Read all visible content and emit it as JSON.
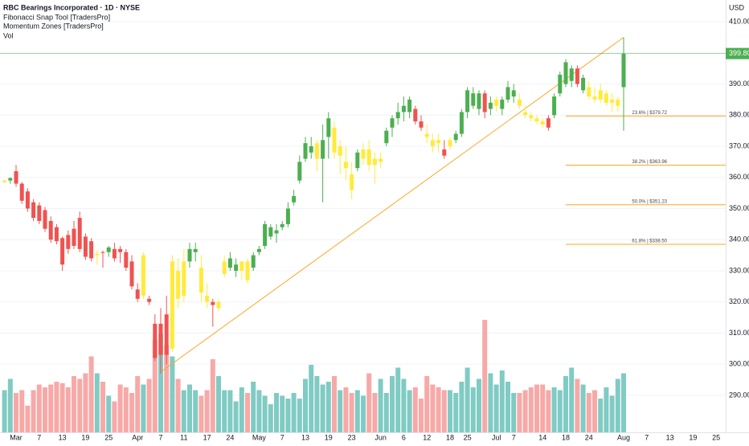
{
  "chart_data": {
    "type": "candlestick",
    "title": "RBC Bearings Incorporated · 1D · NYSE",
    "indicators": [
      "Fibonacci Snap Tool [TradersPro]",
      "Momentum Zones [TradersPro]",
      "Vol"
    ],
    "currency": "USD",
    "ylim": [
      278.1,
      417.0
    ],
    "yticks": [
      290,
      300,
      310,
      320,
      330,
      340,
      350,
      360,
      370,
      380,
      390,
      400,
      410
    ],
    "yticks_labels": [
      "290.00",
      "300.00",
      "310.00",
      "320.00",
      "330.00",
      "340.00",
      "350.00",
      "360.00",
      "370.00",
      "380.00",
      "390.00",
      "400.00",
      "410.00"
    ],
    "xlim": [
      -0.78,
      124.64
    ],
    "xticks": [
      {
        "value": 2,
        "label": "Mar"
      },
      {
        "value": 6,
        "label": "7"
      },
      {
        "value": 10,
        "label": "13"
      },
      {
        "value": 14,
        "label": "19"
      },
      {
        "value": 18,
        "label": "25"
      },
      {
        "value": 23,
        "label": "Apr"
      },
      {
        "value": 27,
        "label": "7"
      },
      {
        "value": 31,
        "label": "11"
      },
      {
        "value": 35,
        "label": "17"
      },
      {
        "value": 39,
        "label": "24"
      },
      {
        "value": 44,
        "label": "May"
      },
      {
        "value": 48,
        "label": "7"
      },
      {
        "value": 52,
        "label": "13"
      },
      {
        "value": 56,
        "label": "19"
      },
      {
        "value": 60,
        "label": "23"
      },
      {
        "value": 65,
        "label": "Jun"
      },
      {
        "value": 69,
        "label": "6"
      },
      {
        "value": 73,
        "label": "12"
      },
      {
        "value": 77,
        "label": "18"
      },
      {
        "value": 80,
        "label": "25"
      },
      {
        "value": 85,
        "label": "Jul"
      },
      {
        "value": 88,
        "label": "7"
      },
      {
        "value": 93,
        "label": "14"
      },
      {
        "value": 97,
        "label": "18"
      },
      {
        "value": 101,
        "label": "24"
      },
      {
        "value": 107,
        "label": "Aug"
      },
      {
        "value": 111,
        "label": "7"
      },
      {
        "value": 115,
        "label": "13"
      },
      {
        "value": 119,
        "label": "19"
      },
      {
        "value": 123,
        "label": "25"
      }
    ],
    "ohlc": [
      [
        358.5,
        359.2,
        358,
        359
      ],
      [
        359,
        360,
        358,
        359.8
      ],
      [
        362,
        364,
        357,
        358
      ],
      [
        358,
        358.5,
        351.5,
        352.5
      ],
      [
        355.5,
        356.5,
        349,
        350
      ],
      [
        352,
        353,
        346,
        347
      ],
      [
        351,
        352,
        345,
        346
      ],
      [
        349.5,
        350.5,
        342.5,
        343.5
      ],
      [
        346,
        347.5,
        339,
        340
      ],
      [
        344,
        345,
        338.5,
        339.5
      ],
      [
        340.5,
        341,
        330,
        332
      ],
      [
        341.5,
        343,
        335.5,
        337
      ],
      [
        343.5,
        346,
        337,
        338
      ],
      [
        347,
        349,
        336,
        337
      ],
      [
        341,
        342,
        333.5,
        334.5
      ],
      [
        339.5,
        340.5,
        333,
        334
      ],
      [
        335,
        336.5,
        332,
        335.5
      ],
      [
        336,
        336.5,
        331,
        335.8
      ],
      [
        336,
        338,
        334.5,
        337.5
      ],
      [
        337,
        339,
        333,
        334
      ],
      [
        337,
        338,
        332.5,
        336
      ],
      [
        336,
        337,
        330,
        331
      ],
      [
        333,
        335,
        324,
        325
      ],
      [
        324,
        326,
        320,
        321
      ],
      [
        322,
        336,
        321,
        335
      ],
      [
        321,
        322,
        319,
        320
      ],
      [
        313,
        316,
        301,
        302
      ],
      [
        303,
        318,
        297,
        313
      ],
      [
        316,
        322,
        300,
        303
      ],
      [
        305,
        335,
        304,
        333
      ],
      [
        330,
        334,
        318,
        321
      ],
      [
        322,
        337,
        320,
        333
      ],
      [
        333,
        339,
        331,
        337
      ],
      [
        336,
        339,
        333,
        337
      ],
      [
        331,
        335,
        320,
        323
      ],
      [
        322,
        326,
        318,
        320
      ],
      [
        320,
        321,
        312,
        319
      ],
      [
        318,
        321,
        317,
        320
      ],
      [
        329,
        335,
        328,
        333
      ],
      [
        331,
        336,
        330,
        334
      ],
      [
        330,
        334,
        328,
        332
      ],
      [
        330,
        333,
        327,
        333
      ],
      [
        333,
        334,
        326,
        327
      ],
      [
        331,
        336,
        330,
        335
      ],
      [
        336,
        338,
        335,
        337
      ],
      [
        338,
        346,
        337,
        345
      ],
      [
        341,
        345,
        340,
        344
      ],
      [
        342,
        345,
        339,
        343
      ],
      [
        344,
        346,
        343,
        345
      ],
      [
        345,
        352,
        344,
        350
      ],
      [
        352,
        356,
        351,
        354
      ],
      [
        359,
        367,
        358,
        365
      ],
      [
        366,
        373,
        365,
        371
      ],
      [
        368,
        373,
        366,
        370
      ],
      [
        366,
        372,
        362,
        371
      ],
      [
        366,
        377,
        352,
        372
      ],
      [
        373,
        381,
        366,
        379
      ],
      [
        376,
        378,
        366,
        368
      ],
      [
        367,
        372,
        361,
        370
      ],
      [
        365,
        370,
        359,
        363
      ],
      [
        361,
        365,
        353,
        356
      ],
      [
        363,
        369,
        362,
        368
      ],
      [
        366,
        371,
        364,
        369
      ],
      [
        369,
        372,
        362,
        364
      ],
      [
        366,
        368,
        358,
        364
      ],
      [
        365,
        368,
        363,
        366
      ],
      [
        371,
        376,
        370,
        375
      ],
      [
        376,
        380,
        373,
        379
      ],
      [
        379,
        384,
        377,
        381
      ],
      [
        381,
        386,
        378,
        383
      ],
      [
        381,
        386,
        379,
        385
      ],
      [
        382,
        383,
        377,
        378
      ],
      [
        378,
        380,
        375,
        376
      ],
      [
        374,
        377,
        371,
        373
      ],
      [
        372,
        374,
        368,
        370
      ],
      [
        372,
        374,
        368,
        371
      ],
      [
        369,
        372,
        366,
        367
      ],
      [
        370,
        373,
        369,
        372
      ],
      [
        372,
        375,
        371,
        374
      ],
      [
        374,
        382,
        373,
        381
      ],
      [
        381,
        389,
        379,
        388
      ],
      [
        383,
        389,
        382,
        387
      ],
      [
        382,
        388,
        380,
        387
      ],
      [
        387,
        388,
        379,
        381
      ],
      [
        382,
        386,
        380,
        384
      ],
      [
        383,
        386,
        381,
        385
      ],
      [
        382,
        386,
        380,
        385
      ],
      [
        385,
        391,
        384,
        389
      ],
      [
        386,
        390,
        384,
        388
      ],
      [
        385,
        387,
        382,
        383
      ],
      [
        381,
        383,
        379,
        380
      ],
      [
        380,
        381,
        378,
        379
      ],
      [
        379,
        380,
        377,
        378
      ],
      [
        378,
        379,
        376,
        377
      ],
      [
        379,
        380,
        375,
        376
      ],
      [
        380,
        387,
        379,
        386
      ],
      [
        387,
        394,
        386,
        393
      ],
      [
        390,
        398,
        389,
        397
      ],
      [
        391,
        396,
        389,
        395
      ],
      [
        395,
        396,
        389,
        390
      ],
      [
        388,
        393,
        387,
        392
      ],
      [
        389,
        391,
        385,
        386
      ],
      [
        386,
        389,
        384,
        385
      ],
      [
        385,
        390,
        384,
        388
      ],
      [
        384,
        388,
        383,
        387
      ],
      [
        384,
        387,
        381,
        385
      ],
      [
        383,
        386,
        381,
        385
      ],
      [
        389,
        405,
        375,
        399.8
      ]
    ],
    "colors": [
      "#ffeb3b",
      "#4caf50",
      "#ef5350",
      "#ef5350",
      "#ef5350",
      "#ef5350",
      "#ef5350",
      "#ef5350",
      "#ef5350",
      "#ef5350",
      "#ef5350",
      "#ef5350",
      "#ef5350",
      "#ef5350",
      "#ef5350",
      "#ef5350",
      "#ffeb3b",
      "#ef5350",
      "#4caf50",
      "#ef5350",
      "#ef5350",
      "#ef5350",
      "#ef5350",
      "#ef5350",
      "#ffeb3b",
      "#ef5350",
      "#ef5350",
      "#ef5350",
      "#ef5350",
      "#ffeb3b",
      "#ffeb3b",
      "#ffeb3b",
      "#4caf50",
      "#4caf50",
      "#ffeb3b",
      "#ffeb3b",
      "#ef5350",
      "#ffeb3b",
      "#ffeb3b",
      "#4caf50",
      "#4caf50",
      "#ffeb3b",
      "#ffeb3b",
      "#4caf50",
      "#4caf50",
      "#4caf50",
      "#4caf50",
      "#4caf50",
      "#4caf50",
      "#4caf50",
      "#4caf50",
      "#4caf50",
      "#4caf50",
      "#4caf50",
      "#ffeb3b",
      "#4caf50",
      "#4caf50",
      "#ffeb3b",
      "#ffeb3b",
      "#ffeb3b",
      "#ffeb3b",
      "#4caf50",
      "#ffeb3b",
      "#ffeb3b",
      "#ffeb3b",
      "#ffeb3b",
      "#4caf50",
      "#4caf50",
      "#4caf50",
      "#4caf50",
      "#4caf50",
      "#ef5350",
      "#ef5350",
      "#ffeb3b",
      "#ffeb3b",
      "#ffeb3b",
      "#ef5350",
      "#ffeb3b",
      "#4caf50",
      "#4caf50",
      "#4caf50",
      "#4caf50",
      "#4caf50",
      "#ef5350",
      "#4caf50",
      "#ffeb3b",
      "#4caf50",
      "#4caf50",
      "#4caf50",
      "#ffeb3b",
      "#ffeb3b",
      "#ffeb3b",
      "#ffeb3b",
      "#ffeb3b",
      "#ef5350",
      "#4caf50",
      "#4caf50",
      "#4caf50",
      "#4caf50",
      "#ef5350",
      "#4caf50",
      "#ffeb3b",
      "#ffeb3b",
      "#ffeb3b",
      "#ffeb3b",
      "#ffeb3b",
      "#ffeb3b",
      "#4caf50"
    ],
    "volume": [
      150,
      190,
      140,
      150,
      95,
      150,
      170,
      160,
      170,
      180,
      175,
      160,
      200,
      190,
      210,
      270,
      210,
      180,
      130,
      110,
      170,
      160,
      140,
      200,
      170,
      190,
      330,
      350,
      310,
      270,
      190,
      150,
      170,
      150,
      130,
      150,
      260,
      200,
      150,
      150,
      110,
      160,
      140,
      180,
      150,
      130,
      100,
      140,
      130,
      120,
      140,
      120,
      190,
      240,
      200,
      170,
      180,
      200,
      150,
      160,
      140,
      150,
      130,
      210,
      140,
      190,
      140,
      200,
      230,
      190,
      150,
      160,
      120,
      200,
      170,
      160,
      150,
      150,
      140,
      180,
      230,
      160,
      190,
      400,
      210,
      170,
      220,
      180,
      140,
      140,
      150,
      160,
      170,
      170,
      150,
      160,
      150,
      200,
      230,
      190,
      170,
      140,
      150,
      120,
      160,
      130,
      190,
      210
    ],
    "vlim": [
      0,
      1000
    ],
    "volume_colors": {
      "up": "#80cbc4",
      "down": "#f7a9a7"
    },
    "last_price": {
      "value": 399.8,
      "label": "399.80"
    },
    "trendline": {
      "x": [
        27,
        107
      ],
      "y": [
        297.5,
        405
      ],
      "color": "#ffa726"
    },
    "fib_levels": [
      {
        "value": 379.72,
        "label": "23.6% | $379.72"
      },
      {
        "value": 363.96,
        "label": "38.2% | $363.96"
      },
      {
        "value": 351.23,
        "label": "50.0% | $351.23"
      },
      {
        "value": 338.5,
        "label": "61.8% | $338.50"
      }
    ],
    "grid": true
  }
}
